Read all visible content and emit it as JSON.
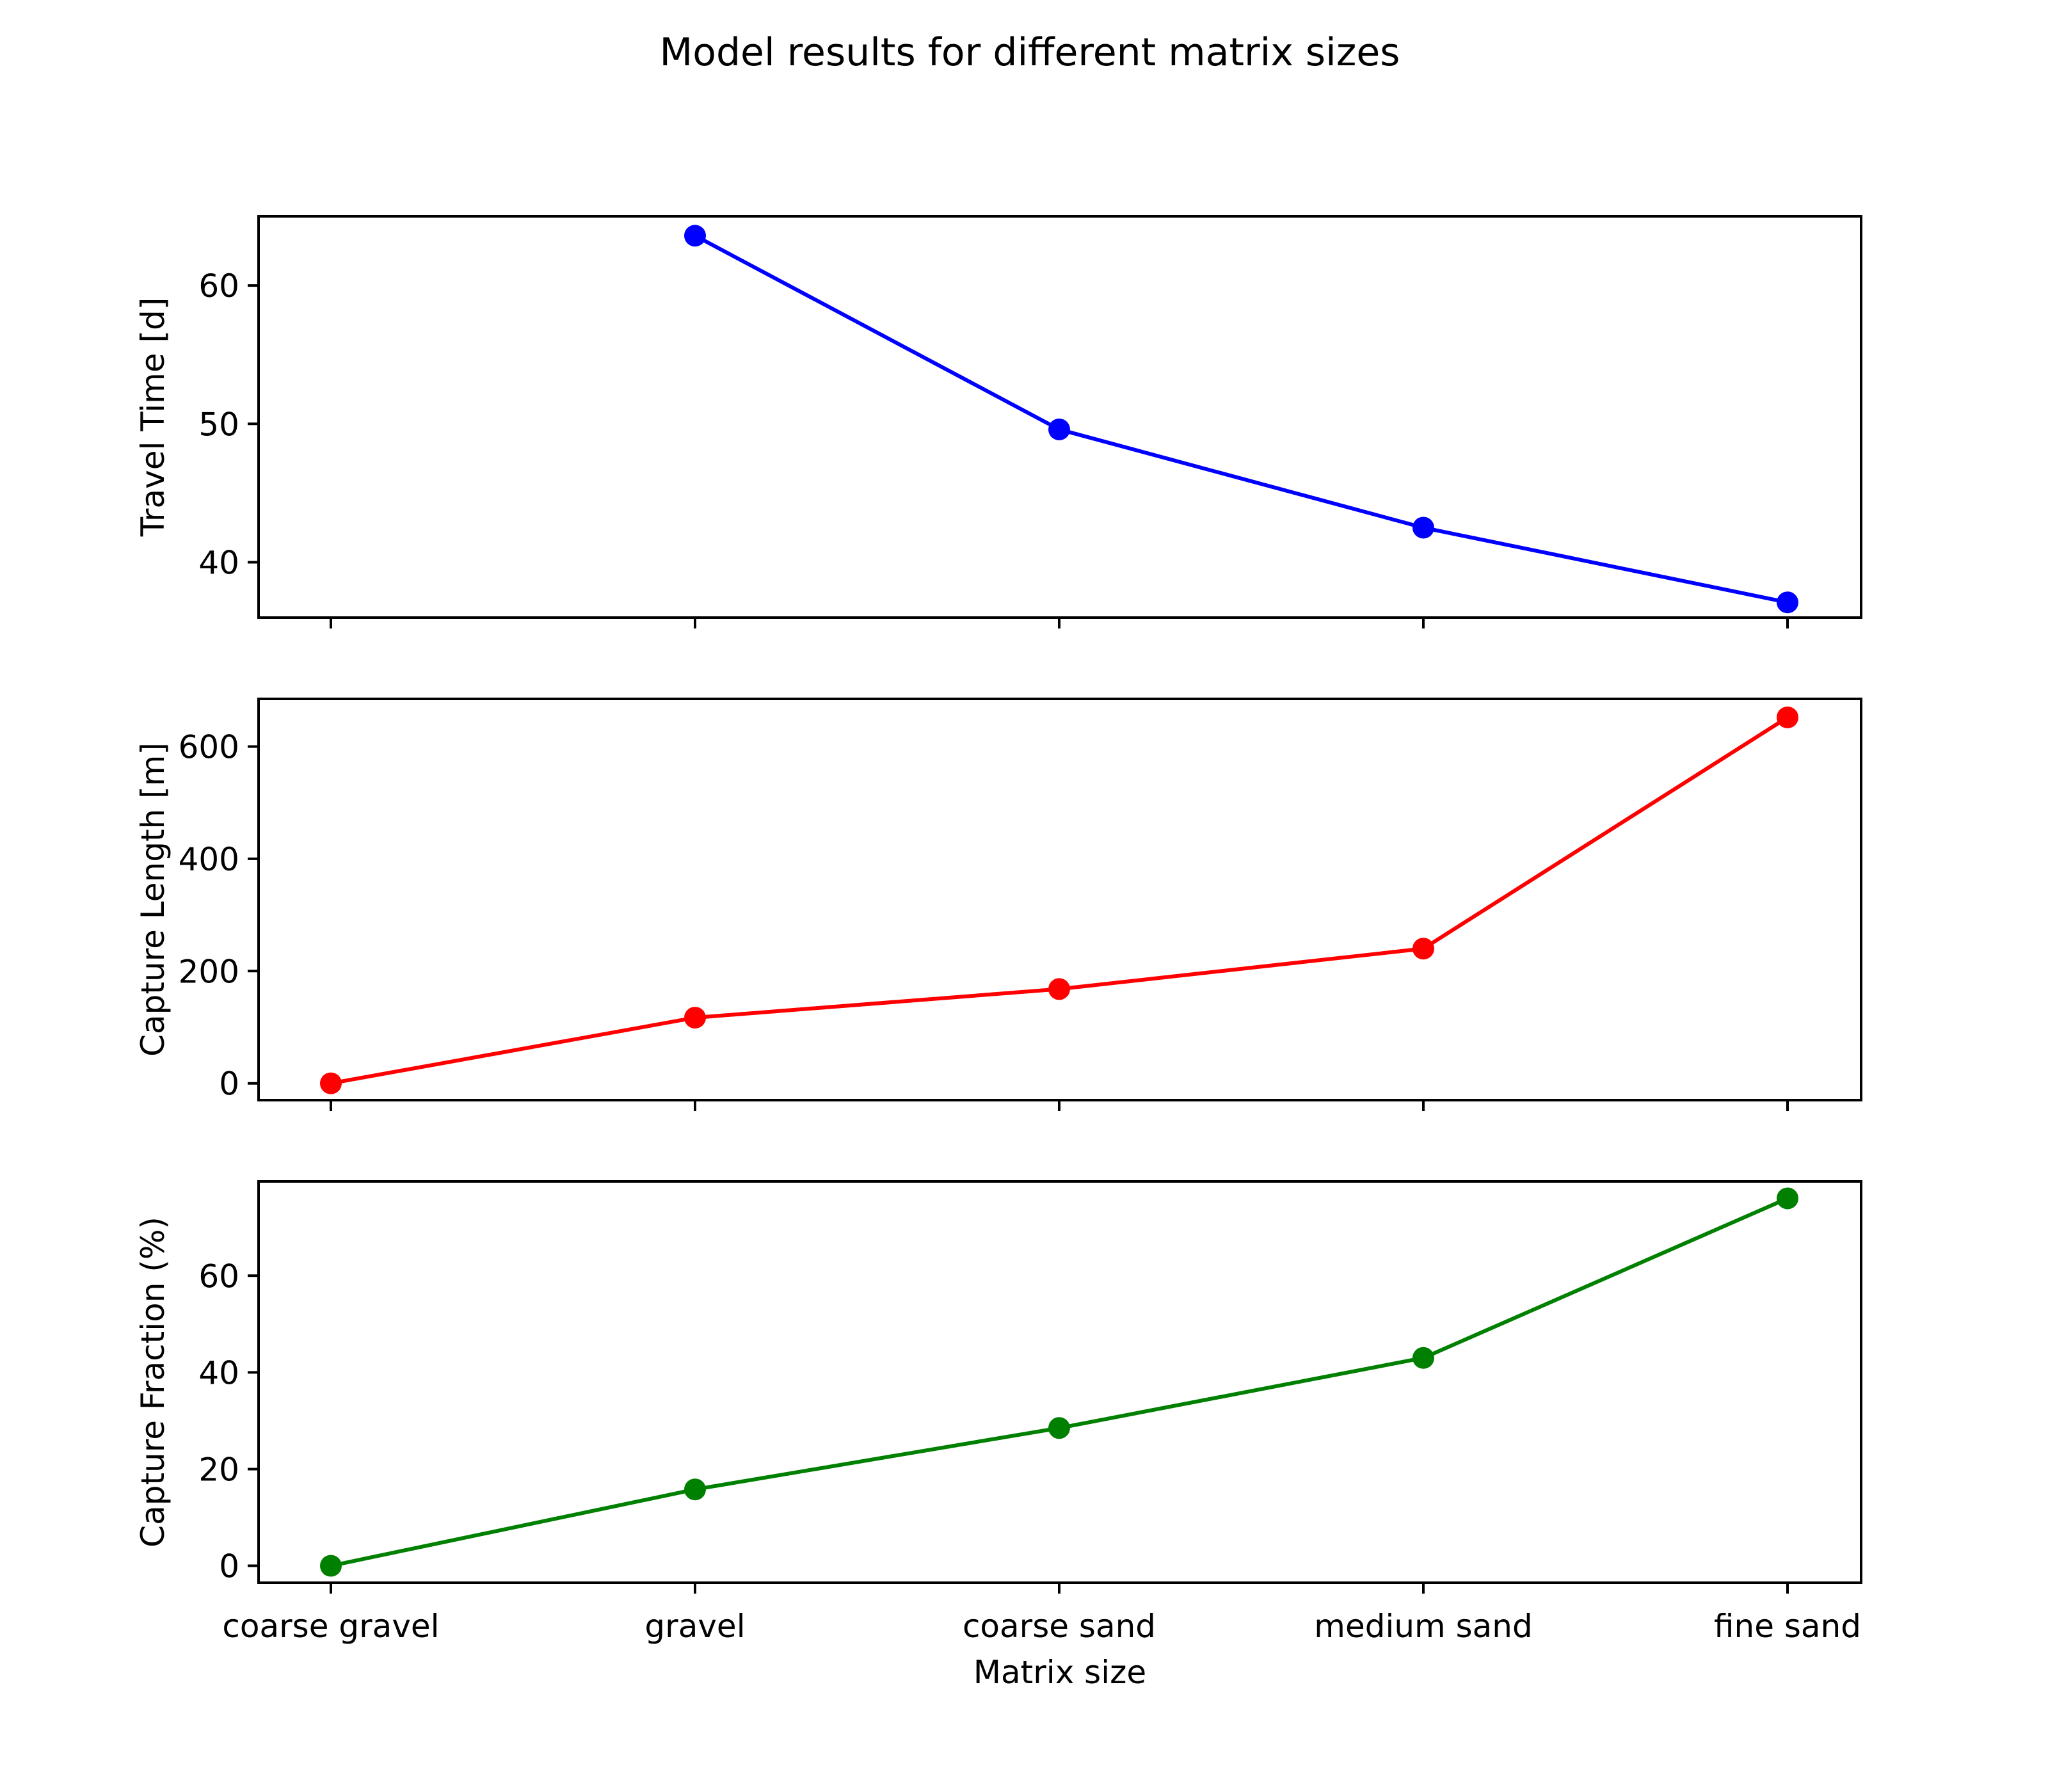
{
  "figure": {
    "title": "Model results for different matrix sizes",
    "xlabel": "Matrix size"
  },
  "chart_data": [
    {
      "type": "line",
      "title": "",
      "xlabel": "",
      "ylabel": "Travel Time [d]",
      "categories": [
        "coarse gravel",
        "gravel",
        "coarse sand",
        "medium sand",
        "fine sand"
      ],
      "series": [
        {
          "name": "",
          "color": "#0000ff",
          "marker": "circle",
          "values": [
            null,
            63.6,
            49.6,
            42.5,
            37.1
          ]
        }
      ],
      "ylim": [
        36,
        65
      ],
      "yticks": [
        40,
        50,
        60
      ],
      "grid": false,
      "legend": "none"
    },
    {
      "type": "line",
      "title": "",
      "xlabel": "",
      "ylabel": "Capture Length [m]",
      "categories": [
        "coarse gravel",
        "gravel",
        "coarse sand",
        "medium sand",
        "fine sand"
      ],
      "series": [
        {
          "name": "",
          "color": "#ff0000",
          "marker": "circle",
          "values": [
            0,
            117,
            168,
            240,
            652
          ]
        }
      ],
      "ylim": [
        -30,
        685
      ],
      "yticks": [
        0,
        200,
        400,
        600
      ],
      "grid": false,
      "legend": "none"
    },
    {
      "type": "line",
      "title": "",
      "xlabel": "Matrix size",
      "ylabel": "Capture Fraction (%)",
      "categories": [
        "coarse gravel",
        "gravel",
        "coarse sand",
        "medium sand",
        "fine sand"
      ],
      "series": [
        {
          "name": "",
          "color": "#008000",
          "marker": "circle",
          "values": [
            0,
            15.8,
            28.5,
            43.0,
            76.0
          ]
        }
      ],
      "ylim": [
        -3.5,
        79.5
      ],
      "yticks": [
        0,
        20,
        40,
        60
      ],
      "grid": false,
      "legend": "none"
    }
  ]
}
